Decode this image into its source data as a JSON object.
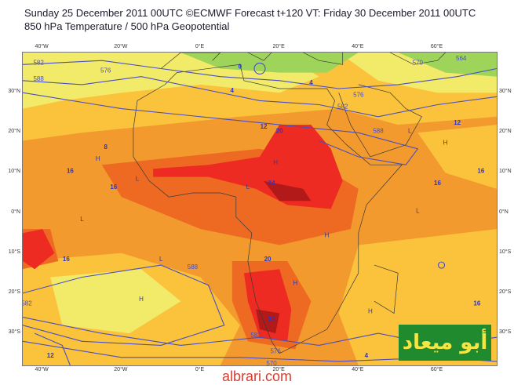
{
  "title": {
    "line1": "Sunday 25 December 2011 00UTC ©ECMWF Forecast t+120 VT: Friday 30 December 2011 00UTC",
    "line2": "850 hPa Temperature / 500 hPa Geopotential"
  },
  "axes": {
    "lon_ticks": [
      "40°W",
      "20°W",
      "0°E",
      "20°E",
      "40°E",
      "60°E"
    ],
    "lon_values": [
      -40,
      -20,
      0,
      20,
      40,
      60
    ],
    "lat_ticks": [
      "30°N",
      "20°N",
      "10°N",
      "0°N",
      "10°S",
      "20°S",
      "30°S"
    ],
    "lat_values": [
      30,
      20,
      10,
      0,
      -10,
      -20,
      -30
    ],
    "lon_range": [
      -45,
      75
    ],
    "lat_range": [
      -38,
      40
    ]
  },
  "colors": {
    "temp_cold": "#9fd45a",
    "temp_cool": "#f2eb6a",
    "temp_mild": "#fbc33c",
    "temp_warm": "#f39a2e",
    "temp_hot": "#ee6a23",
    "temp_hotter": "#ee2b22",
    "temp_hottest": "#b21a1a",
    "contour_line": "#4a4ec0",
    "coastline": "#3a3a3a"
  },
  "contour_labels": [
    {
      "text": "582",
      "lon": -41,
      "lat": 37
    },
    {
      "text": "588",
      "lon": -41,
      "lat": 33
    },
    {
      "text": "576",
      "lon": -24,
      "lat": 35
    },
    {
      "text": "582",
      "lon": 36,
      "lat": 26
    },
    {
      "text": "576",
      "lon": 40,
      "lat": 29
    },
    {
      "text": "588",
      "lon": 45,
      "lat": 20
    },
    {
      "text": "570",
      "lon": 55,
      "lat": 37
    },
    {
      "text": "564",
      "lon": 66,
      "lat": 38
    },
    {
      "text": "588",
      "lon": -2,
      "lat": -14
    },
    {
      "text": "582",
      "lon": -44,
      "lat": -23
    },
    {
      "text": "582",
      "lon": 14,
      "lat": -31
    },
    {
      "text": "576",
      "lon": 19,
      "lat": -35
    },
    {
      "text": "570",
      "lon": 18,
      "lat": -38
    }
  ],
  "temp_labels": [
    {
      "text": "20",
      "lon": 20,
      "lat": 20
    },
    {
      "text": "12",
      "lon": 16,
      "lat": 21
    },
    {
      "text": "16",
      "lon": -33,
      "lat": 10
    },
    {
      "text": "16",
      "lon": -22,
      "lat": 6
    },
    {
      "text": "16",
      "lon": -34,
      "lat": -12
    },
    {
      "text": "12",
      "lon": -38,
      "lat": -36
    },
    {
      "text": "24",
      "lon": 18,
      "lat": 7
    },
    {
      "text": "20",
      "lon": 17,
      "lat": -12
    },
    {
      "text": "24",
      "lon": 18,
      "lat": -27
    },
    {
      "text": "12",
      "lon": 65,
      "lat": 22
    },
    {
      "text": "16",
      "lon": 71,
      "lat": 10
    },
    {
      "text": "16",
      "lon": 60,
      "lat": 7
    },
    {
      "text": "16",
      "lon": 70,
      "lat": -23
    },
    {
      "text": "4",
      "lon": 28,
      "lat": 32
    },
    {
      "text": "0",
      "lon": 10,
      "lat": 36
    },
    {
      "text": "4",
      "lon": 8,
      "lat": 30
    },
    {
      "text": "8",
      "lon": -24,
      "lat": 16
    },
    {
      "text": "4",
      "lon": 42,
      "lat": -36
    }
  ],
  "pressure_marks": [
    {
      "text": "H",
      "lon": -26,
      "lat": 13
    },
    {
      "text": "L",
      "lon": -16,
      "lat": 8
    },
    {
      "text": "L",
      "lon": -30,
      "lat": -2
    },
    {
      "text": "H",
      "lon": 19,
      "lat": 12
    },
    {
      "text": "L",
      "lon": 12,
      "lat": 6
    },
    {
      "text": "H",
      "lon": 32,
      "lat": -6
    },
    {
      "text": "H",
      "lon": 24,
      "lat": -18
    },
    {
      "text": "H",
      "lon": 43,
      "lat": -25
    },
    {
      "text": "L",
      "lon": 53,
      "lat": 20
    },
    {
      "text": "H",
      "lon": 62,
      "lat": 17
    },
    {
      "text": "L",
      "lon": 55,
      "lat": 0
    },
    {
      "text": "H",
      "lon": -15,
      "lat": -22
    },
    {
      "text": "L",
      "lon": -10,
      "lat": -12
    }
  ],
  "watermark": {
    "arabic": "أبو ميعاد",
    "site": "albrari.com"
  }
}
